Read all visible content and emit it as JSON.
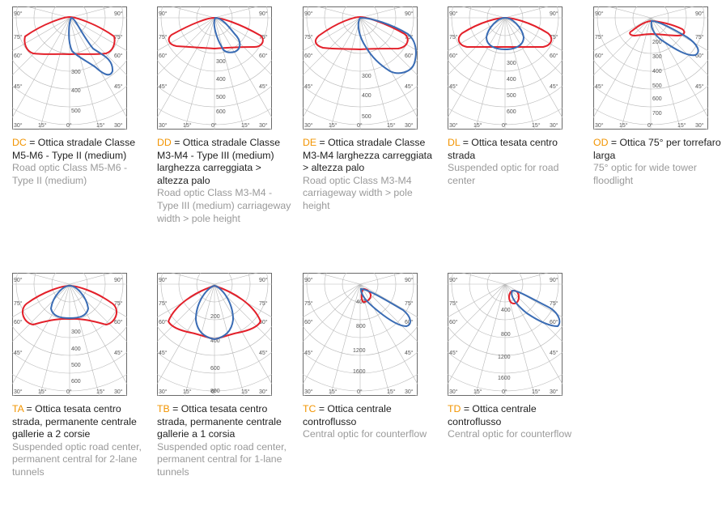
{
  "colors": {
    "code": "#f29400",
    "red": "#e3202a",
    "blue": "#3a6cb4",
    "grid": "#b5b5b5",
    "frame": "#6a6a6a"
  },
  "optics": [
    {
      "code": "DC",
      "italian": "= Ottica stradale Classe M5-M6 - Type II (medium)",
      "english": "Road optic Class M5-M6 - Type II (medium)",
      "radial_labels": [
        "300",
        "400",
        "500"
      ],
      "angles": {
        "top": "90°",
        "upper": "75°",
        "mid": "60°",
        "lower": "45°",
        "bottom": "30°",
        "inner": "15°",
        "center": "0°"
      }
    },
    {
      "code": "DD",
      "italian": "= Ottica stradale Classe M3-M4 - Type III (medium) larghezza carreggiata > altezza palo",
      "english": "Road optic Class M3-M4 - Type III (medium) carriageway width > pole height",
      "radial_labels": [
        "300",
        "400",
        "500",
        "600"
      ],
      "angles": {
        "top": "90°",
        "upper": "75°",
        "mid": "60°",
        "lower": "45°",
        "bottom": "30°",
        "inner": "15°",
        "center": "0°"
      }
    },
    {
      "code": "DE",
      "italian": "= Ottica stradale Classe M3-M4 larghezza carreggiata > altezza palo",
      "english": "Road optic Class M3-M4 carriageway width > pole height",
      "radial_labels": [
        "300",
        "400",
        "500"
      ],
      "angles": {
        "top": "90°",
        "upper": "75°",
        "mid": "60°",
        "lower": "45°",
        "bottom": "30°",
        "inner": "15°",
        "center": "0°"
      }
    },
    {
      "code": "DL",
      "italian": "= Ottica tesata centro strada",
      "english": "Suspended optic for road center",
      "radial_labels": [
        "300",
        "400",
        "500",
        "600"
      ],
      "angles": {
        "top": "90°",
        "upper": "75°",
        "mid": "60°",
        "lower": "45°",
        "bottom": "30°",
        "inner": "15°",
        "center": "0°"
      }
    },
    {
      "code": "OD",
      "italian": "= Ottica 75° per torrefaro larga",
      "english": "75° optic for wide tower floodlight",
      "radial_labels": [
        "200",
        "300",
        "400",
        "500",
        "600",
        "700"
      ],
      "angles": {
        "top": "90°",
        "upper": "75°",
        "mid": "60°",
        "lower": "45°",
        "bottom": "30°",
        "inner": "15°",
        "center": "0°"
      }
    },
    {
      "code": "TA",
      "italian": "= Ottica tesata centro strada, permanente centrale gallerie a 2 corsie",
      "english": "Suspended optic road center, permanent central for 2-lane tunnels",
      "radial_labels": [
        "300",
        "400",
        "500",
        "600"
      ],
      "angles": {
        "top": "90°",
        "upper": "75°",
        "mid": "60°",
        "lower": "45°",
        "bottom": "30°",
        "inner": "15°",
        "center": "0°"
      }
    },
    {
      "code": "TB",
      "italian": "= Ottica tesata centro strada, permanente centrale gallerie a 1 corsia",
      "english": "Suspended optic road center, permanent central for 1-lane tunnels",
      "radial_labels": [
        "200",
        "400",
        "600",
        "800"
      ],
      "angles": {
        "top": "90°",
        "upper": "75°",
        "mid": "60°",
        "lower": "45°",
        "bottom": "30°",
        "inner": "15°",
        "center": "0°"
      }
    },
    {
      "code": "TC",
      "italian": "= Ottica centrale controflusso",
      "english": "Central optic for counterflow",
      "radial_labels": [
        "400",
        "800",
        "1200",
        "1600"
      ],
      "angles": {
        "top": "90°",
        "upper": "75°",
        "mid": "60°",
        "lower": "45°",
        "bottom": "30°",
        "inner": "15°",
        "center": "0°"
      }
    },
    {
      "code": "TD",
      "italian": "= Ottica centrale controflusso",
      "english": "Central optic for counterflow",
      "radial_labels": [
        "400",
        "800",
        "1200",
        "1600"
      ],
      "angles": {
        "top": "90°",
        "upper": "75°",
        "mid": "60°",
        "lower": "45°",
        "bottom": "30°",
        "inner": "15°",
        "center": "0°"
      }
    }
  ]
}
